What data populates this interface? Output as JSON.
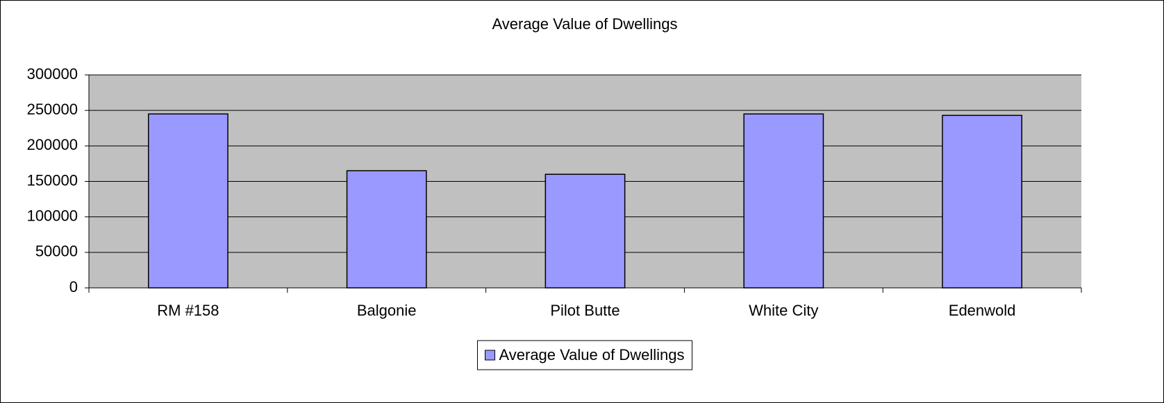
{
  "chart_data": {
    "type": "bar",
    "title": "Average Value of Dwellings",
    "categories": [
      "RM #158",
      "Balgonie",
      "Pilot Butte",
      "White City",
      "Edenwold"
    ],
    "series": [
      {
        "name": "Average Value of Dwellings",
        "color": "#9999ff",
        "values": [
          245000,
          165000,
          160000,
          245000,
          243000
        ]
      }
    ],
    "ylim": [
      0,
      300000
    ],
    "yticks": [
      0,
      50000,
      100000,
      150000,
      200000,
      250000,
      300000
    ],
    "grid": true,
    "legend": "bottom"
  }
}
